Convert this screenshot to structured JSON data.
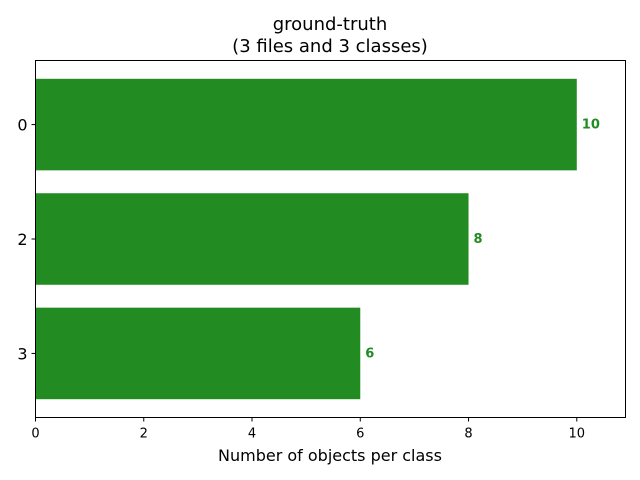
{
  "chart_data": {
    "type": "bar",
    "orientation": "horizontal",
    "title_lines": [
      "ground-truth",
      "(3 files and 3 classes)"
    ],
    "xlabel": "Number of objects per class",
    "ylabel": "",
    "categories": [
      "0",
      "2",
      "3"
    ],
    "values": [
      10,
      8,
      6
    ],
    "data_labels": [
      "10",
      "8",
      "6"
    ],
    "xlim": [
      0,
      10.9
    ],
    "xticks": [
      0,
      2,
      4,
      6,
      8,
      10
    ],
    "xtick_labels": [
      "0",
      "2",
      "4",
      "6",
      "8",
      "10"
    ],
    "bar_color": "#228b22",
    "label_color": "#228b22",
    "grid": false,
    "legend": "none"
  }
}
